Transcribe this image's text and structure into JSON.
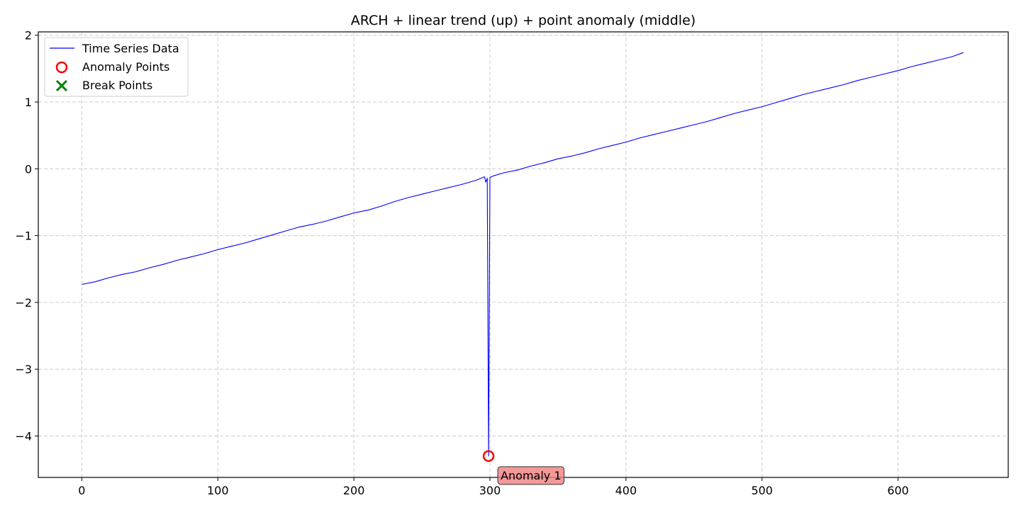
{
  "chart_data": {
    "type": "line",
    "title": "ARCH + linear trend (up) + point anomaly (middle)",
    "xlabel": "",
    "ylabel": "",
    "xlim": [
      -32,
      681
    ],
    "ylim": [
      -4.62,
      2.05
    ],
    "x_ticks": [
      0,
      100,
      200,
      300,
      400,
      500,
      600
    ],
    "x_tick_labels": [
      "0",
      "100",
      "200",
      "300",
      "400",
      "500",
      "600"
    ],
    "y_ticks": [
      2,
      1,
      0,
      -1,
      -2,
      -3,
      -4
    ],
    "y_tick_labels": [
      "2",
      "1",
      "0",
      "−1",
      "−2",
      "−3",
      "−4"
    ],
    "grid": true,
    "legend_placement": "upper-left",
    "series": [
      {
        "name": "Time Series Data",
        "color": "#0000ff",
        "x": [
          0,
          10,
          20,
          30,
          40,
          50,
          60,
          70,
          80,
          90,
          100,
          110,
          120,
          130,
          140,
          150,
          160,
          170,
          180,
          190,
          200,
          210,
          220,
          230,
          240,
          250,
          260,
          270,
          280,
          290,
          296,
          297,
          298,
          299,
          300,
          301,
          302,
          310,
          320,
          330,
          340,
          350,
          360,
          370,
          380,
          390,
          400,
          410,
          420,
          430,
          440,
          450,
          460,
          470,
          480,
          490,
          500,
          510,
          520,
          530,
          540,
          550,
          560,
          570,
          580,
          590,
          600,
          610,
          620,
          630,
          640,
          648
        ],
        "y": [
          -1.73,
          -1.69,
          -1.63,
          -1.58,
          -1.54,
          -1.48,
          -1.43,
          -1.37,
          -1.32,
          -1.27,
          -1.21,
          -1.16,
          -1.11,
          -1.05,
          -0.99,
          -0.93,
          -0.87,
          -0.83,
          -0.78,
          -0.72,
          -0.66,
          -0.62,
          -0.56,
          -0.49,
          -0.43,
          -0.38,
          -0.33,
          -0.28,
          -0.23,
          -0.17,
          -0.12,
          -0.2,
          -0.14,
          -4.3,
          -0.13,
          -0.12,
          -0.11,
          -0.06,
          -0.02,
          0.04,
          0.09,
          0.15,
          0.19,
          0.24,
          0.3,
          0.35,
          0.4,
          0.46,
          0.51,
          0.56,
          0.61,
          0.66,
          0.71,
          0.77,
          0.83,
          0.88,
          0.93,
          0.99,
          1.05,
          1.11,
          1.16,
          1.21,
          1.26,
          1.32,
          1.37,
          1.42,
          1.47,
          1.53,
          1.58,
          1.63,
          1.68,
          1.74
        ]
      }
    ],
    "anomaly_points": [
      {
        "x": 299,
        "y": -4.3,
        "label": "Anomaly 1"
      }
    ],
    "break_points": [],
    "legend": {
      "line_label": "Time Series Data",
      "anomaly_label": "Anomaly Points",
      "break_label": "Break Points"
    },
    "colors": {
      "line": "#0000ff",
      "anomaly": "#ff0000",
      "break": "#008000",
      "annotation_fill": "#f08080",
      "grid": "#cccccc"
    }
  }
}
